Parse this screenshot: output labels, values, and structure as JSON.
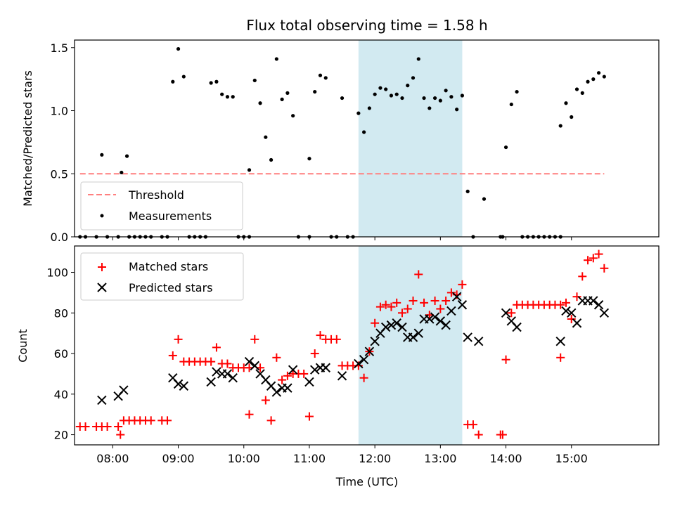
{
  "chart_data": [
    {
      "type": "scatter",
      "title": "Flux total observing time = 1.58 h",
      "xlabel": "",
      "ylabel": "Matched/Predicted stars",
      "xlim": [
        "07:25",
        "16:20"
      ],
      "ylim": [
        0,
        1.56
      ],
      "yticks": [
        0,
        0.5,
        1.0,
        1.5
      ],
      "ytick_labels": [
        "0.0",
        "0.5",
        "1.0",
        "1.5"
      ],
      "shaded_region": {
        "x_start": "11:45",
        "x_end": "13:20",
        "color": "#add8e6"
      },
      "threshold": {
        "name": "Threshold",
        "value": 0.5,
        "x_start": "07:30",
        "x_end": "15:30",
        "color": "#ff7f7f"
      },
      "series": [
        {
          "name": "Measurements",
          "color": "#000000",
          "marker": "dot",
          "points": [
            [
              "07:30",
              0
            ],
            [
              "07:35",
              0
            ],
            [
              "07:45",
              0
            ],
            [
              "07:50",
              0.65
            ],
            [
              "07:55",
              0
            ],
            [
              "08:05",
              0
            ],
            [
              "08:08",
              0.51
            ],
            [
              "08:13",
              0.64
            ],
            [
              "08:15",
              0
            ],
            [
              "08:20",
              0
            ],
            [
              "08:25",
              0
            ],
            [
              "08:30",
              0
            ],
            [
              "08:35",
              0
            ],
            [
              "08:45",
              0
            ],
            [
              "08:50",
              0
            ],
            [
              "08:55",
              1.23
            ],
            [
              "09:00",
              1.49
            ],
            [
              "09:05",
              1.27
            ],
            [
              "09:10",
              0
            ],
            [
              "09:15",
              0
            ],
            [
              "09:20",
              0
            ],
            [
              "09:25",
              0
            ],
            [
              "09:30",
              1.22
            ],
            [
              "09:35",
              1.23
            ],
            [
              "09:40",
              1.13
            ],
            [
              "09:45",
              1.11
            ],
            [
              "09:50",
              1.11
            ],
            [
              "09:55",
              0
            ],
            [
              "10:00",
              0
            ],
            [
              "10:05",
              0
            ],
            [
              "10:05",
              0.53
            ],
            [
              "10:10",
              1.24
            ],
            [
              "10:15",
              1.06
            ],
            [
              "10:20",
              0.79
            ],
            [
              "10:25",
              0.61
            ],
            [
              "10:30",
              1.41
            ],
            [
              "10:35",
              1.09
            ],
            [
              "10:40",
              1.14
            ],
            [
              "10:45",
              0.96
            ],
            [
              "10:50",
              0
            ],
            [
              "11:00",
              0
            ],
            [
              "11:00",
              0.62
            ],
            [
              "11:05",
              1.15
            ],
            [
              "11:10",
              1.28
            ],
            [
              "11:15",
              1.26
            ],
            [
              "11:20",
              0
            ],
            [
              "11:25",
              0
            ],
            [
              "11:30",
              1.1
            ],
            [
              "11:35",
              0
            ],
            [
              "11:40",
              0
            ],
            [
              "11:45",
              0.98
            ],
            [
              "11:50",
              0.83
            ],
            [
              "11:55",
              1.02
            ],
            [
              "12:00",
              1.13
            ],
            [
              "12:05",
              1.18
            ],
            [
              "12:10",
              1.17
            ],
            [
              "12:15",
              1.12
            ],
            [
              "12:20",
              1.13
            ],
            [
              "12:25",
              1.1
            ],
            [
              "12:30",
              1.2
            ],
            [
              "12:35",
              1.26
            ],
            [
              "12:40",
              1.41
            ],
            [
              "12:45",
              1.1
            ],
            [
              "12:50",
              1.02
            ],
            [
              "12:55",
              1.1
            ],
            [
              "13:00",
              1.08
            ],
            [
              "13:05",
              1.16
            ],
            [
              "13:10",
              1.11
            ],
            [
              "13:15",
              1.01
            ],
            [
              "13:20",
              1.12
            ],
            [
              "13:25",
              0.36
            ],
            [
              "13:30",
              0
            ],
            [
              "13:40",
              0.3
            ],
            [
              "13:55",
              0
            ],
            [
              "13:57",
              0
            ],
            [
              "14:00",
              0.71
            ],
            [
              "14:05",
              1.05
            ],
            [
              "14:10",
              1.15
            ],
            [
              "14:15",
              0
            ],
            [
              "14:20",
              0
            ],
            [
              "14:25",
              0
            ],
            [
              "14:30",
              0
            ],
            [
              "14:35",
              0
            ],
            [
              "14:40",
              0
            ],
            [
              "14:45",
              0
            ],
            [
              "14:50",
              0
            ],
            [
              "14:50",
              0.88
            ],
            [
              "14:55",
              1.06
            ],
            [
              "15:00",
              0.95
            ],
            [
              "15:05",
              1.17
            ],
            [
              "15:10",
              1.14
            ],
            [
              "15:15",
              1.23
            ],
            [
              "15:20",
              1.25
            ],
            [
              "15:25",
              1.3
            ],
            [
              "15:30",
              1.27
            ]
          ]
        }
      ],
      "legend": {
        "position": "lower-left",
        "entries": [
          "Threshold",
          "Measurements"
        ]
      }
    },
    {
      "type": "scatter",
      "xlabel": "Time (UTC)",
      "ylabel": "Count",
      "xlim": [
        "07:25",
        "16:20"
      ],
      "ylim": [
        15,
        113
      ],
      "xticks": [
        "08:00",
        "09:00",
        "10:00",
        "11:00",
        "12:00",
        "13:00",
        "14:00",
        "15:00"
      ],
      "yticks": [
        20,
        40,
        60,
        80,
        100
      ],
      "shaded_region": {
        "x_start": "11:45",
        "x_end": "13:20",
        "color": "#add8e6"
      },
      "series": [
        {
          "name": "Matched stars",
          "color": "#ff0000",
          "marker": "plus",
          "points": [
            [
              "07:30",
              24
            ],
            [
              "07:35",
              24
            ],
            [
              "07:45",
              24
            ],
            [
              "07:50",
              24
            ],
            [
              "07:55",
              24
            ],
            [
              "08:05",
              24
            ],
            [
              "08:07",
              20
            ],
            [
              "08:10",
              27
            ],
            [
              "08:15",
              27
            ],
            [
              "08:20",
              27
            ],
            [
              "08:25",
              27
            ],
            [
              "08:30",
              27
            ],
            [
              "08:35",
              27
            ],
            [
              "08:45",
              27
            ],
            [
              "08:50",
              27
            ],
            [
              "08:55",
              59
            ],
            [
              "09:00",
              67
            ],
            [
              "09:05",
              56
            ],
            [
              "09:10",
              56
            ],
            [
              "09:15",
              56
            ],
            [
              "09:20",
              56
            ],
            [
              "09:25",
              56
            ],
            [
              "09:30",
              56
            ],
            [
              "09:35",
              63
            ],
            [
              "09:40",
              55
            ],
            [
              "09:45",
              55
            ],
            [
              "09:50",
              53
            ],
            [
              "09:55",
              53
            ],
            [
              "10:00",
              53
            ],
            [
              "10:05",
              53
            ],
            [
              "10:05",
              30
            ],
            [
              "10:10",
              67
            ],
            [
              "10:15",
              53
            ],
            [
              "10:20",
              37
            ],
            [
              "10:25",
              27
            ],
            [
              "10:30",
              58
            ],
            [
              "10:35",
              47
            ],
            [
              "10:40",
              49
            ],
            [
              "10:45",
              50
            ],
            [
              "10:50",
              50
            ],
            [
              "10:55",
              50
            ],
            [
              "11:00",
              29
            ],
            [
              "11:05",
              60
            ],
            [
              "11:10",
              69
            ],
            [
              "11:15",
              67
            ],
            [
              "11:20",
              67
            ],
            [
              "11:25",
              67
            ],
            [
              "11:30",
              54
            ],
            [
              "11:35",
              54
            ],
            [
              "11:40",
              54
            ],
            [
              "11:45",
              54
            ],
            [
              "11:50",
              48
            ],
            [
              "11:55",
              61
            ],
            [
              "12:00",
              75
            ],
            [
              "12:05",
              83
            ],
            [
              "12:10",
              84
            ],
            [
              "12:15",
              83
            ],
            [
              "12:20",
              85
            ],
            [
              "12:25",
              80
            ],
            [
              "12:30",
              82
            ],
            [
              "12:35",
              86
            ],
            [
              "12:40",
              99
            ],
            [
              "12:45",
              85
            ],
            [
              "12:50",
              79
            ],
            [
              "12:55",
              86
            ],
            [
              "13:00",
              82
            ],
            [
              "13:05",
              86
            ],
            [
              "13:10",
              90
            ],
            [
              "13:15",
              89
            ],
            [
              "13:20",
              94
            ],
            [
              "13:25",
              25
            ],
            [
              "13:30",
              25
            ],
            [
              "13:35",
              20
            ],
            [
              "13:55",
              20
            ],
            [
              "13:57",
              20
            ],
            [
              "14:00",
              57
            ],
            [
              "14:05",
              80
            ],
            [
              "14:10",
              84
            ],
            [
              "14:15",
              84
            ],
            [
              "14:20",
              84
            ],
            [
              "14:25",
              84
            ],
            [
              "14:30",
              84
            ],
            [
              "14:35",
              84
            ],
            [
              "14:40",
              84
            ],
            [
              "14:45",
              84
            ],
            [
              "14:50",
              84
            ],
            [
              "14:50",
              58
            ],
            [
              "14:55",
              85
            ],
            [
              "15:00",
              77
            ],
            [
              "15:05",
              88
            ],
            [
              "15:10",
              98
            ],
            [
              "15:15",
              106
            ],
            [
              "15:20",
              107
            ],
            [
              "15:25",
              109
            ],
            [
              "15:30",
              102
            ]
          ]
        },
        {
          "name": "Predicted stars",
          "color": "#000000",
          "marker": "x",
          "points": [
            [
              "07:50",
              37
            ],
            [
              "08:05",
              39
            ],
            [
              "08:10",
              42
            ],
            [
              "08:55",
              48
            ],
            [
              "09:00",
              45
            ],
            [
              "09:05",
              44
            ],
            [
              "09:30",
              46
            ],
            [
              "09:35",
              51
            ],
            [
              "09:40",
              50
            ],
            [
              "09:45",
              50
            ],
            [
              "09:50",
              48
            ],
            [
              "10:05",
              56
            ],
            [
              "10:10",
              54
            ],
            [
              "10:15",
              50
            ],
            [
              "10:20",
              47
            ],
            [
              "10:25",
              44
            ],
            [
              "10:30",
              41
            ],
            [
              "10:35",
              43
            ],
            [
              "10:40",
              43
            ],
            [
              "10:45",
              52
            ],
            [
              "11:00",
              46
            ],
            [
              "11:05",
              52
            ],
            [
              "11:10",
              53
            ],
            [
              "11:15",
              53
            ],
            [
              "11:30",
              49
            ],
            [
              "11:45",
              55
            ],
            [
              "11:50",
              57
            ],
            [
              "11:55",
              61
            ],
            [
              "12:00",
              66
            ],
            [
              "12:05",
              70
            ],
            [
              "12:10",
              73
            ],
            [
              "12:15",
              74
            ],
            [
              "12:20",
              75
            ],
            [
              "12:25",
              73
            ],
            [
              "12:30",
              68
            ],
            [
              "12:35",
              68
            ],
            [
              "12:40",
              70
            ],
            [
              "12:45",
              77
            ],
            [
              "12:50",
              77
            ],
            [
              "12:55",
              78
            ],
            [
              "13:00",
              76
            ],
            [
              "13:05",
              74
            ],
            [
              "13:10",
              81
            ],
            [
              "13:15",
              88
            ],
            [
              "13:20",
              84
            ],
            [
              "13:25",
              68
            ],
            [
              "13:35",
              66
            ],
            [
              "14:00",
              80
            ],
            [
              "14:05",
              76
            ],
            [
              "14:10",
              73
            ],
            [
              "14:50",
              66
            ],
            [
              "14:55",
              81
            ],
            [
              "15:00",
              80
            ],
            [
              "15:05",
              75
            ],
            [
              "15:10",
              86
            ],
            [
              "15:15",
              86
            ],
            [
              "15:20",
              86
            ],
            [
              "15:25",
              84
            ],
            [
              "15:30",
              80
            ]
          ]
        }
      ],
      "legend": {
        "position": "upper-left",
        "entries": [
          "Matched stars",
          "Predicted stars"
        ]
      }
    }
  ]
}
